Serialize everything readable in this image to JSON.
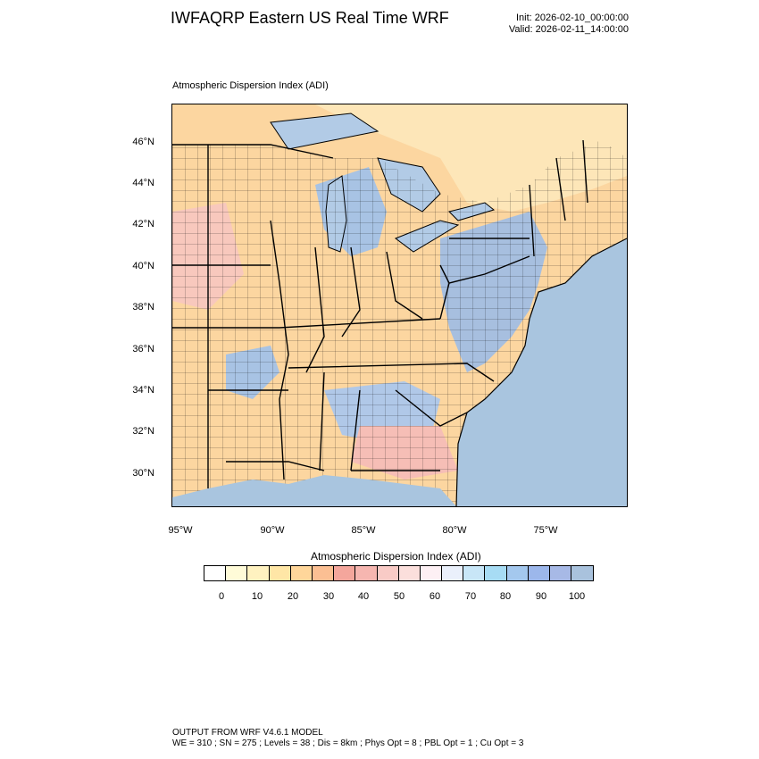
{
  "header": {
    "title": "IWFAQRP Eastern US Real Time WRF",
    "init": "Init: 2026-02-10_00:00:00",
    "valid": "Valid: 2026-02-11_14:00:00"
  },
  "plot": {
    "subtitle": "Atmospheric Dispersion Index   (ADI)",
    "lat_labels": [
      "46°N",
      "44°N",
      "42°N",
      "40°N",
      "38°N",
      "36°N",
      "34°N",
      "32°N",
      "30°N"
    ],
    "lon_labels": [
      "95°W",
      "90°W",
      "85°W",
      "80°W",
      "75°W"
    ]
  },
  "colorbar": {
    "title": "Atmospheric Dispersion Index  (ADI)",
    "colors": [
      "#ffffff",
      "#fffbd8",
      "#fff2c0",
      "#ffe6a6",
      "#ffd69a",
      "#fbbf93",
      "#f4a69c",
      "#f6b6b0",
      "#f9cbc6",
      "#fbdfdc",
      "#fdf0f4",
      "#eaf0fb",
      "#c8e6f7",
      "#a7dcf4",
      "#a4c8ee",
      "#9cb7eb",
      "#a7b9e6",
      "#a9c2dd"
    ],
    "labels": [
      "0",
      "10",
      "20",
      "30",
      "40",
      "50",
      "60",
      "70",
      "80",
      "90",
      "100"
    ]
  },
  "footer": {
    "line1": "OUTPUT FROM WRF V4.6.1 MODEL",
    "line2": "WE = 310 ; SN = 275 ; Levels = 38 ; Dis = 8km ; Phys Opt = 8 ; PBL Opt = 1 ; Cu Opt = 3"
  }
}
